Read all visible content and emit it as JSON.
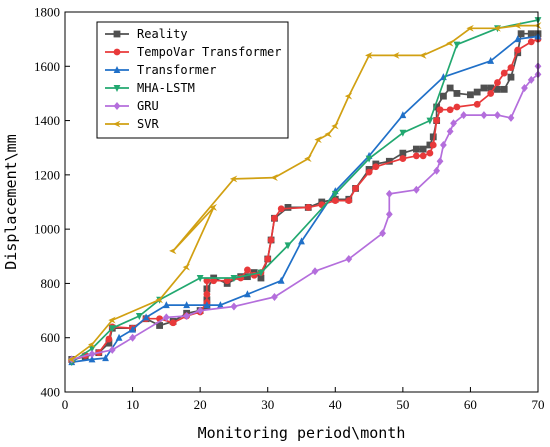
{
  "chart_data": {
    "type": "line",
    "title": "",
    "xlabel": "Monitoring period\\month",
    "ylabel": "Displacement\\mm",
    "xlim": [
      0,
      70
    ],
    "ylim": [
      400,
      1800
    ],
    "xticks": [
      0,
      10,
      20,
      30,
      40,
      50,
      60,
      70
    ],
    "yticks": [
      400,
      600,
      800,
      1000,
      1200,
      1400,
      1600,
      1800
    ],
    "grid": false,
    "legend_position": "top-left",
    "series": [
      {
        "name": "Reality",
        "color": "#505050",
        "marker": "square",
        "points": [
          [
            1,
            520
          ],
          [
            3,
            530
          ],
          [
            5,
            545
          ],
          [
            6.5,
            580
          ],
          [
            7,
            635
          ],
          [
            10,
            635
          ],
          [
            12,
            670
          ],
          [
            14,
            645
          ],
          [
            16,
            660
          ],
          [
            18,
            690
          ],
          [
            20,
            700
          ],
          [
            21,
            715
          ],
          [
            21,
            740
          ],
          [
            21,
            780
          ],
          [
            22,
            820
          ],
          [
            24,
            800
          ],
          [
            26,
            825
          ],
          [
            27,
            825
          ],
          [
            28,
            840
          ],
          [
            29,
            820
          ],
          [
            30,
            890
          ],
          [
            30.5,
            960
          ],
          [
            31,
            1040
          ],
          [
            33,
            1080
          ],
          [
            36,
            1080
          ],
          [
            38,
            1100
          ],
          [
            40,
            1110
          ],
          [
            42,
            1110
          ],
          [
            43,
            1150
          ],
          [
            45,
            1220
          ],
          [
            46,
            1240
          ],
          [
            48,
            1250
          ],
          [
            50,
            1280
          ],
          [
            52,
            1295
          ],
          [
            53,
            1295
          ],
          [
            54,
            1310
          ],
          [
            54.5,
            1340
          ],
          [
            55,
            1400
          ],
          [
            55,
            1450
          ],
          [
            56,
            1490
          ],
          [
            57,
            1520
          ],
          [
            58,
            1500
          ],
          [
            60,
            1495
          ],
          [
            61,
            1505
          ],
          [
            62,
            1520
          ],
          [
            63,
            1520
          ],
          [
            64,
            1515
          ],
          [
            65,
            1515
          ],
          [
            66,
            1560
          ],
          [
            67,
            1650
          ],
          [
            67.5,
            1720
          ],
          [
            69,
            1720
          ],
          [
            70,
            1720
          ]
        ]
      },
      {
        "name": "TempoVar Transformer",
        "color": "#e8393a",
        "marker": "circle",
        "points": [
          [
            1,
            515
          ],
          [
            3,
            535
          ],
          [
            5,
            545
          ],
          [
            6.5,
            595
          ],
          [
            7,
            640
          ],
          [
            10,
            635
          ],
          [
            12,
            670
          ],
          [
            14,
            670
          ],
          [
            16,
            655
          ],
          [
            18,
            680
          ],
          [
            20,
            695
          ],
          [
            21,
            730
          ],
          [
            21,
            760
          ],
          [
            21,
            810
          ],
          [
            22,
            810
          ],
          [
            24,
            810
          ],
          [
            26,
            820
          ],
          [
            27,
            850
          ],
          [
            28,
            830
          ],
          [
            29,
            840
          ],
          [
            30,
            890
          ],
          [
            30.5,
            960
          ],
          [
            31,
            1040
          ],
          [
            32,
            1075
          ],
          [
            36,
            1080
          ],
          [
            38,
            1090
          ],
          [
            40,
            1105
          ],
          [
            42,
            1105
          ],
          [
            43,
            1150
          ],
          [
            45,
            1210
          ],
          [
            46,
            1230
          ],
          [
            50,
            1260
          ],
          [
            52,
            1270
          ],
          [
            53,
            1270
          ],
          [
            54,
            1280
          ],
          [
            54.5,
            1310
          ],
          [
            55,
            1400
          ],
          [
            55.5,
            1440
          ],
          [
            57,
            1440
          ],
          [
            58,
            1450
          ],
          [
            61,
            1460
          ],
          [
            63,
            1500
          ],
          [
            64,
            1540
          ],
          [
            65,
            1575
          ],
          [
            66,
            1595
          ],
          [
            67,
            1660
          ],
          [
            69,
            1690
          ],
          [
            70,
            1700
          ]
        ]
      },
      {
        "name": "Transformer",
        "color": "#2070c8",
        "marker": "triangle-up",
        "points": [
          [
            1,
            510
          ],
          [
            4,
            520
          ],
          [
            6,
            525
          ],
          [
            8,
            600
          ],
          [
            10,
            630
          ],
          [
            12,
            675
          ],
          [
            15,
            720
          ],
          [
            18,
            720
          ],
          [
            21,
            720
          ],
          [
            23,
            720
          ],
          [
            27,
            760
          ],
          [
            32,
            810
          ],
          [
            35,
            955
          ],
          [
            40,
            1140
          ],
          [
            45,
            1270
          ],
          [
            50,
            1420
          ],
          [
            56,
            1560
          ],
          [
            63,
            1620
          ],
          [
            67,
            1700
          ],
          [
            70,
            1710
          ]
        ]
      },
      {
        "name": "MHA-LSTM",
        "color": "#22a870",
        "marker": "triangle-down",
        "points": [
          [
            1,
            510
          ],
          [
            4,
            560
          ],
          [
            7,
            635
          ],
          [
            11,
            680
          ],
          [
            14,
            740
          ],
          [
            20,
            820
          ],
          [
            25,
            820
          ],
          [
            29,
            840
          ],
          [
            33,
            940
          ],
          [
            40,
            1130
          ],
          [
            45,
            1260
          ],
          [
            50,
            1355
          ],
          [
            54,
            1400
          ],
          [
            58,
            1680
          ],
          [
            64,
            1740
          ],
          [
            70,
            1770
          ]
        ]
      },
      {
        "name": "GRU",
        "color": "#b46edc",
        "marker": "diamond",
        "points": [
          [
            1,
            520
          ],
          [
            4,
            540
          ],
          [
            7,
            555
          ],
          [
            10,
            600
          ],
          [
            15,
            675
          ],
          [
            18,
            680
          ],
          [
            20,
            700
          ],
          [
            25,
            715
          ],
          [
            31,
            750
          ],
          [
            37,
            845
          ],
          [
            42,
            890
          ],
          [
            47,
            985
          ],
          [
            48,
            1055
          ],
          [
            48,
            1130
          ],
          [
            52,
            1145
          ],
          [
            55,
            1215
          ],
          [
            55.5,
            1250
          ],
          [
            56,
            1310
          ],
          [
            57,
            1360
          ],
          [
            57.5,
            1390
          ],
          [
            59,
            1420
          ],
          [
            62,
            1420
          ],
          [
            64,
            1420
          ],
          [
            66,
            1410
          ],
          [
            68,
            1520
          ],
          [
            69,
            1550
          ],
          [
            70,
            1570
          ],
          [
            70,
            1600
          ]
        ]
      },
      {
        "name": "SVR",
        "color": "#d1a012",
        "marker": "tri-left",
        "points": [
          [
            1,
            520
          ],
          [
            4,
            575
          ],
          [
            7,
            665
          ],
          [
            14,
            740
          ],
          [
            18,
            860
          ],
          [
            22,
            1080
          ],
          [
            16,
            920
          ],
          [
            25,
            1185
          ],
          [
            31,
            1190
          ],
          [
            36,
            1260
          ],
          [
            37.5,
            1330
          ],
          [
            39,
            1350
          ],
          [
            40,
            1380
          ],
          [
            42,
            1490
          ],
          [
            45,
            1640
          ],
          [
            49,
            1640
          ],
          [
            53,
            1640
          ],
          [
            57,
            1685
          ],
          [
            60,
            1740
          ],
          [
            64,
            1740
          ],
          [
            67,
            1750
          ],
          [
            70,
            1750
          ]
        ]
      }
    ]
  }
}
